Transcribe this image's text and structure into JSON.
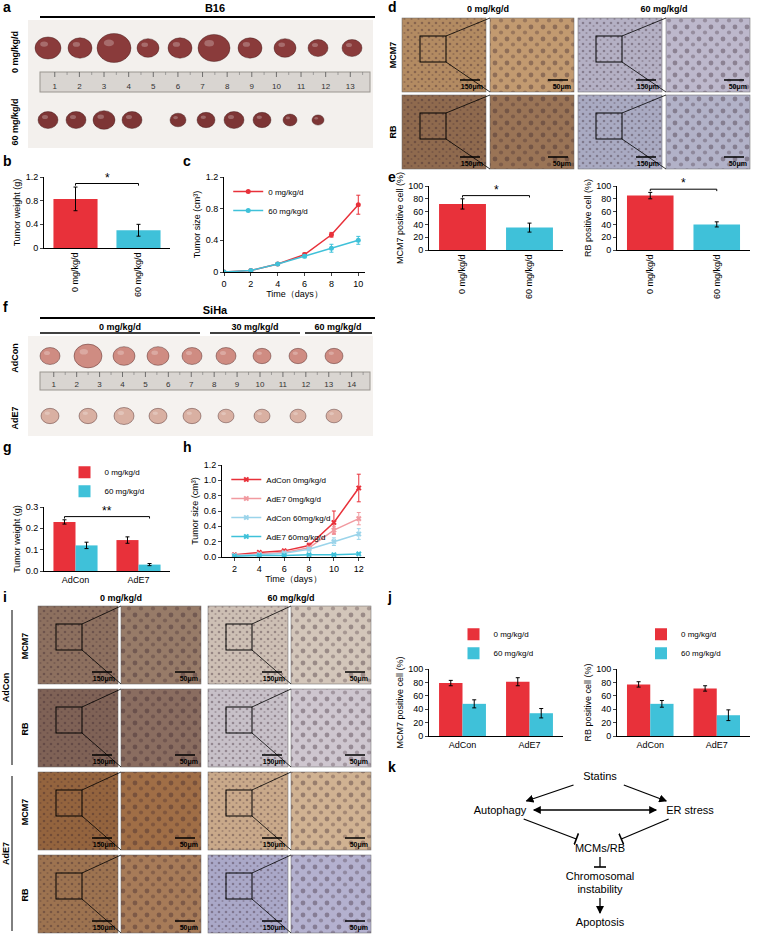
{
  "panel_letters": [
    "a",
    "b",
    "c",
    "d",
    "e",
    "f",
    "g",
    "h",
    "i",
    "j",
    "k"
  ],
  "photos": {
    "a": {
      "title": "B16",
      "rows": [
        "0 mg/kg/d",
        "60 mg/kg/d"
      ],
      "ruler": [
        1,
        2,
        3,
        4,
        5,
        6,
        7,
        8,
        9,
        10,
        11,
        12,
        13
      ]
    },
    "d": {
      "columns": [
        "0 mg/kg/d",
        "60 mg/kg/d"
      ],
      "rows": [
        "MCM7",
        "RB"
      ],
      "scale_bars": [
        "150μm",
        "50μm"
      ]
    },
    "f": {
      "title": "SiHa",
      "columns": [
        "0 mg/kg/d",
        "30 mg/kg/d",
        "60 mg/kg/d"
      ],
      "rows": [
        "AdCon",
        "AdE7"
      ],
      "ruler": [
        1,
        2,
        3,
        4,
        5,
        6,
        7,
        8,
        9,
        10,
        11,
        12,
        13,
        14
      ]
    },
    "i": {
      "columns": [
        "0 mg/kg/d",
        "60 mg/kg/d"
      ],
      "groups": [
        "AdCon",
        "AdE7"
      ],
      "rows": [
        "MCM7",
        "RB"
      ],
      "scale_bars": [
        "150μm",
        "50μm"
      ]
    }
  },
  "diagram": {
    "nodes": [
      {
        "lines": [
          "Statins"
        ]
      },
      {
        "lines": [
          "Autophagy"
        ]
      },
      {
        "lines": [
          "ER stress"
        ]
      },
      {
        "lines": [
          "MCMs/RB"
        ]
      },
      {
        "lines": [
          "Chromosomal",
          "instability"
        ]
      },
      {
        "lines": [
          "Apoptosis"
        ]
      }
    ],
    "edges": [
      {
        "from": "Statins",
        "to": "Autophagy",
        "kind": "arrow"
      },
      {
        "from": "Statins",
        "to": "ER stress",
        "kind": "arrow"
      },
      {
        "from": "Autophagy",
        "to": "ER stress",
        "kind": "both"
      },
      {
        "from": "Autophagy",
        "to": "MCMs/RB",
        "kind": "inhibit"
      },
      {
        "from": "ER stress",
        "to": "MCMs/RB",
        "kind": "inhibit"
      },
      {
        "from": "MCMs/RB",
        "to": "Chromosomal instability",
        "kind": "inhibit"
      },
      {
        "from": "Chromosomal instability",
        "to": "Apoptosis",
        "kind": "arrow"
      }
    ]
  },
  "chart_data": [
    {
      "type": "bar",
      "categories": [
        "0 mg/kg/d",
        "60 mg/kg/d"
      ],
      "values": [
        0.83,
        0.3
      ],
      "error": [
        0.2,
        0.1
      ],
      "colors": [
        "#e8313a",
        "#3fc1d9"
      ],
      "y_label": "Tumor weight (g)",
      "ylim": [
        0,
        1.2
      ],
      "yticks": [
        0,
        0.4,
        0.8,
        1.2
      ],
      "annotations": [
        {
          "text": "*",
          "between": [
            "0 mg/kg/d",
            "60 mg/kg/d"
          ]
        }
      ]
    },
    {
      "type": "line",
      "x": [
        0,
        2,
        4,
        6,
        8,
        10
      ],
      "x_label": "Time（days）",
      "y_label": "Tumor size (cm³)",
      "xlim": [
        0,
        10.5
      ],
      "xticks": [
        0,
        2,
        4,
        6,
        8,
        10
      ],
      "ylim": [
        0,
        1.2
      ],
      "yticks": [
        0,
        0.4,
        0.8,
        1.2
      ],
      "legend": "top-left",
      "marker": "circle",
      "series": [
        {
          "name": "0 mg/kg/d",
          "color": "#e8313a",
          "values": [
            0,
            0.02,
            0.1,
            0.22,
            0.47,
            0.85
          ],
          "error": [
            0,
            0,
            0.01,
            0.02,
            0.03,
            0.12
          ]
        },
        {
          "name": "60 mg/kg/d",
          "color": "#3fc1d9",
          "values": [
            0,
            0.02,
            0.1,
            0.2,
            0.3,
            0.4
          ],
          "error": [
            0,
            0,
            0.01,
            0.02,
            0.05,
            0.05
          ]
        }
      ]
    },
    {
      "type": "bar",
      "categories": [
        "0 mg/kg/d",
        "60 mg/kg/d"
      ],
      "values": [
        72,
        35
      ],
      "error": [
        8,
        7
      ],
      "colors": [
        "#e8313a",
        "#3fc1d9"
      ],
      "y_label": "MCM7 positive cell (%)",
      "ylim": [
        0,
        100
      ],
      "yticks": [
        0,
        20,
        40,
        60,
        80,
        100
      ],
      "annotations": [
        {
          "text": "*",
          "between": [
            "0 mg/kg/d",
            "60 mg/kg/d"
          ]
        }
      ]
    },
    {
      "type": "bar",
      "categories": [
        "0 mg/kg/d",
        "60 mg/kg/d"
      ],
      "values": [
        85,
        40
      ],
      "error": [
        5,
        4
      ],
      "colors": [
        "#e8313a",
        "#3fc1d9"
      ],
      "y_label": "RB positive cell (%)",
      "ylim": [
        0,
        100
      ],
      "yticks": [
        0,
        20,
        40,
        60,
        80,
        100
      ],
      "annotations": [
        {
          "text": "*",
          "between": [
            "0 mg/kg/d",
            "60 mg/kg/d"
          ]
        }
      ]
    },
    {
      "type": "bar",
      "categories": [
        "AdCon",
        "AdE7"
      ],
      "y_label": "Tumor weight (g)",
      "ylim": [
        0,
        0.3
      ],
      "yticks": [
        {
          "value": 0,
          "label": "0.0"
        },
        0.1,
        0.2,
        0.3
      ],
      "legend": "top",
      "series": [
        {
          "name": "0 mg/kg/d",
          "color": "#e8313a",
          "values": [
            0.23,
            0.145
          ],
          "error": [
            0.01,
            0.015
          ]
        },
        {
          "name": "60 mg/kg/d",
          "color": "#3fc1d9",
          "values": [
            0.12,
            0.03
          ],
          "error": [
            0.015,
            0.005
          ]
        }
      ],
      "annotations": [
        {
          "text": "**",
          "between": [
            "AdCon",
            "AdE7"
          ]
        }
      ]
    },
    {
      "type": "line",
      "x": [
        2,
        4,
        6,
        8,
        10,
        12
      ],
      "x_label": "Time（days）",
      "y_label": "Tumor size (cm³)",
      "xlim": [
        1,
        12.5
      ],
      "xticks": [
        2,
        4,
        6,
        8,
        10,
        12
      ],
      "ylim": [
        0,
        1.2
      ],
      "yticks": [
        {
          "value": 0,
          "label": "0.0"
        },
        0.2,
        0.4,
        0.6,
        0.8,
        {
          "value": 1,
          "label": "1.0"
        },
        1.2
      ],
      "legend": "top-left",
      "marker": "x",
      "series": [
        {
          "name": "AdCon 0mg/kg/d",
          "color": "#e8313a",
          "values": [
            0.03,
            0.06,
            0.08,
            0.15,
            0.45,
            0.9
          ],
          "error": [
            0.01,
            0.01,
            0.02,
            0.03,
            0.15,
            0.18
          ]
        },
        {
          "name": "AdE7 0mg/kg/d",
          "color": "#f19aa0",
          "values": [
            0.02,
            0.04,
            0.06,
            0.12,
            0.35,
            0.5
          ],
          "error": [
            0.01,
            0.01,
            0.01,
            0.02,
            0.05,
            0.08
          ]
        },
        {
          "name": "AdCon 60mg/kg/d",
          "color": "#9bd4ea",
          "values": [
            0.02,
            0.03,
            0.05,
            0.1,
            0.2,
            0.3
          ],
          "error": [
            0.01,
            0.01,
            0.01,
            0.02,
            0.05,
            0.07
          ]
        },
        {
          "name": "AdE7 60mg/kg/d",
          "color": "#3fc1d9",
          "values": [
            0.01,
            0.02,
            0.02,
            0.03,
            0.03,
            0.04
          ],
          "error": [
            0.005,
            0.005,
            0.005,
            0.01,
            0.01,
            0.01
          ]
        }
      ]
    },
    {
      "type": "bar",
      "categories": [
        "AdCon",
        "AdE7"
      ],
      "y_label": "MCM7 positive cell (%)",
      "ylim": [
        0,
        100
      ],
      "yticks": [
        0,
        20,
        40,
        60,
        80,
        100
      ],
      "legend": "top",
      "series": [
        {
          "name": "0 mg/kg/d",
          "color": "#e8313a",
          "values": [
            79,
            81
          ],
          "error": [
            4,
            6
          ]
        },
        {
          "name": "60 mg/kg/d",
          "color": "#3fc1d9",
          "values": [
            48,
            34
          ],
          "error": [
            6,
            7
          ]
        }
      ]
    },
    {
      "type": "bar",
      "categories": [
        "AdCon",
        "AdE7"
      ],
      "y_label": "RB positive cell (%)",
      "ylim": [
        0,
        100
      ],
      "yticks": [
        0,
        20,
        40,
        60,
        80,
        100
      ],
      "legend": "top",
      "series": [
        {
          "name": "0 mg/kg/d",
          "color": "#e8313a",
          "values": [
            77,
            71
          ],
          "error": [
            4,
            4
          ]
        },
        {
          "name": "60 mg/kg/d",
          "color": "#3fc1d9",
          "values": [
            48,
            31
          ],
          "error": [
            5,
            8
          ]
        }
      ]
    }
  ]
}
